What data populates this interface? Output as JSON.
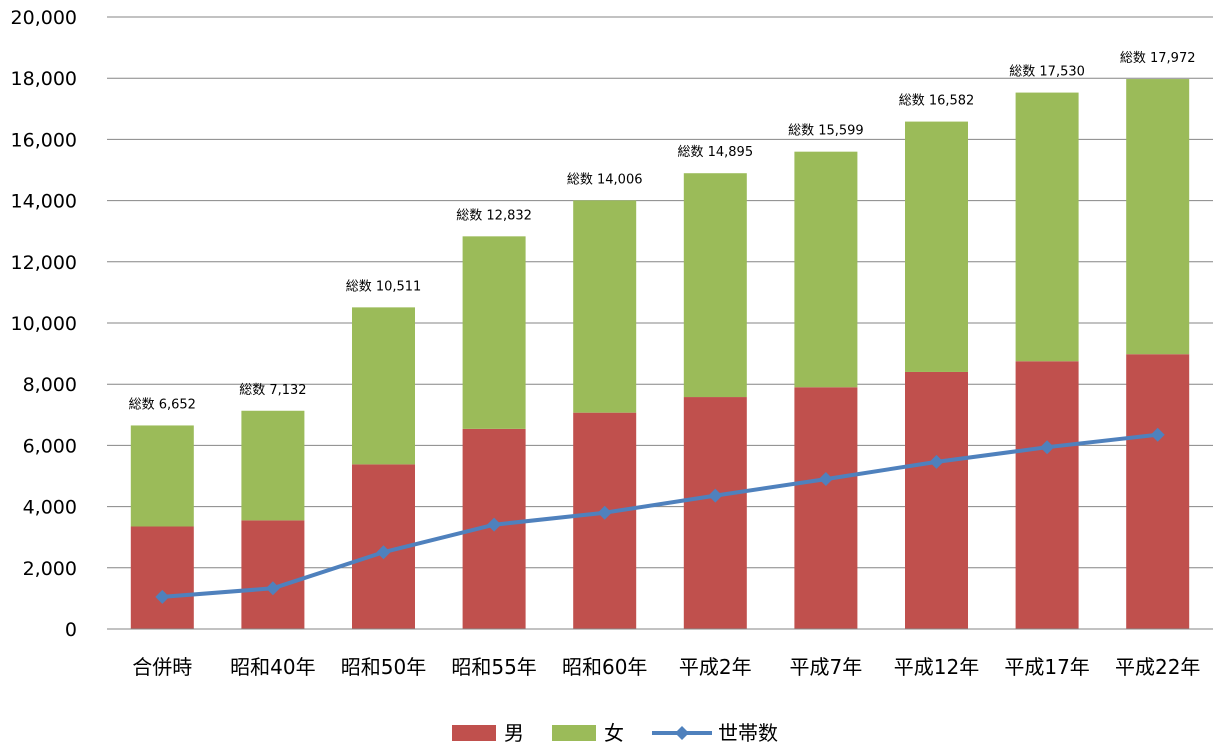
{
  "chart_data": {
    "type": "bar",
    "stacked": true,
    "categories": [
      "合併時",
      "昭和40年",
      "昭和50年",
      "昭和55年",
      "昭和60年",
      "平成2年",
      "平成7年",
      "平成12年",
      "平成17年",
      "平成22年"
    ],
    "series": [
      {
        "name": "男",
        "kind": "bar",
        "color": "#c0504d",
        "values": [
          3350,
          3550,
          5380,
          6540,
          7070,
          7580,
          7900,
          8400,
          8750,
          8980
        ]
      },
      {
        "name": "女",
        "kind": "bar",
        "color": "#9bbb59",
        "values": [
          3302,
          3582,
          5131,
          6292,
          6936,
          7315,
          7699,
          8182,
          8780,
          8992
        ]
      },
      {
        "name": "世帯数",
        "kind": "line",
        "color": "#4f81bd",
        "marker": "diamond",
        "values": [
          1050,
          1330,
          2510,
          3410,
          3800,
          4360,
          4900,
          5460,
          5940,
          6350
        ]
      }
    ],
    "total_labels": [
      "総数 6,652",
      "総数 7,132",
      "総数 10,511",
      "総数 12,832",
      "総数 14,006",
      "総数 14,895",
      "総数 15,599",
      "総数 16,582",
      "総数 17,530",
      "総数 17,972"
    ],
    "y_ticks": [
      "0",
      "2,000",
      "4,000",
      "6,000",
      "8,000",
      "10,000",
      "12,000",
      "14,000",
      "16,000",
      "18,000",
      "20,000"
    ],
    "ylim": [
      0,
      20000
    ],
    "grid": true,
    "legend_position": "bottom"
  }
}
